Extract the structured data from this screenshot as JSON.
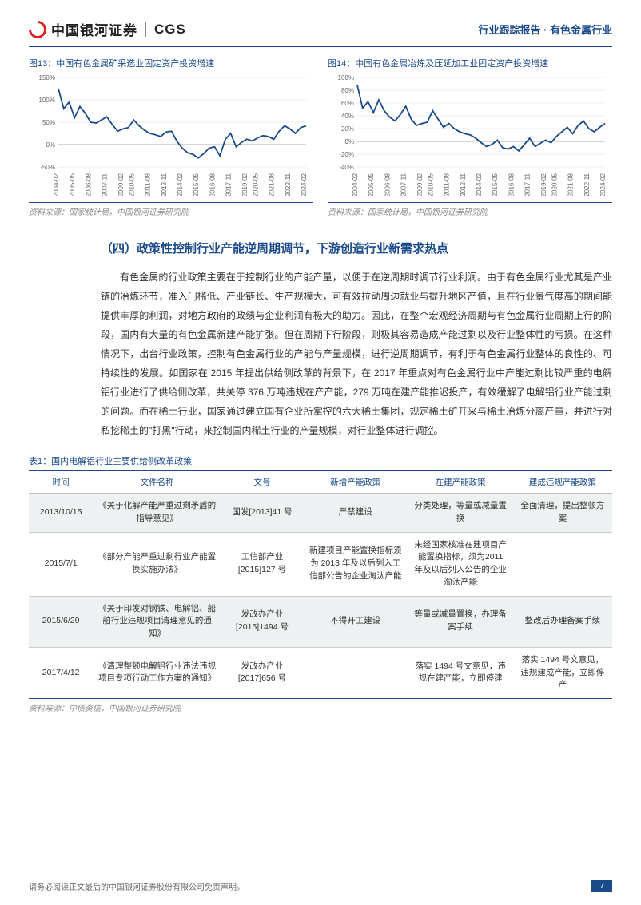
{
  "header": {
    "logo_cn": "中国银河证券",
    "logo_en": "CGS",
    "right_text": "行业跟踪报告 · 有色金属行业"
  },
  "chart_left": {
    "caption": "图13：中国有色金属矿采选业固定资产投资增速",
    "source": "资料来源：国家统计局，中国银河证券研究院",
    "type": "line",
    "ylim": [
      -50,
      150
    ],
    "yticks": [
      -50,
      0,
      50,
      100,
      150
    ],
    "xticks": [
      "2004-02",
      "2005-05",
      "2006-08",
      "2007-11",
      "2009-02",
      "2010-05",
      "2011-08",
      "2012-11",
      "2014-02",
      "2015-05",
      "2016-08",
      "2017-11",
      "2019-02",
      "2020-05",
      "2021-08",
      "2022-11",
      "2024-02"
    ],
    "line_color": "#1a4a8a",
    "grid_color": "#d8d8d8",
    "bg_color": "#ffffff",
    "label_fontsize": 8,
    "series": [
      125,
      80,
      95,
      60,
      85,
      70,
      50,
      48,
      55,
      62,
      45,
      30,
      35,
      38,
      55,
      42,
      32,
      25,
      22,
      18,
      28,
      30,
      8,
      -8,
      -18,
      -22,
      -30,
      -20,
      -8,
      -5,
      -25,
      12,
      25,
      -5,
      5,
      12,
      8,
      15,
      20,
      18,
      12,
      30,
      42,
      35,
      25,
      38,
      42
    ]
  },
  "chart_right": {
    "caption": "图14：中国有色金属冶炼及压延加工业固定资产投资增速",
    "source": "资料来源：国家统计局，中国银河证券研究院",
    "type": "line",
    "ylim": [
      -40,
      100
    ],
    "yticks": [
      -40,
      -20,
      0,
      20,
      40,
      60,
      80,
      100
    ],
    "xticks": [
      "2004-02",
      "2005-05",
      "2006-08",
      "2007-11",
      "2009-02",
      "2010-05",
      "2011-08",
      "2012-11",
      "2014-02",
      "2015-05",
      "2016-08",
      "2017-11",
      "2019-02",
      "2020-05",
      "2021-08",
      "2022-11",
      "2024-02"
    ],
    "line_color": "#1a4a8a",
    "grid_color": "#d8d8d8",
    "bg_color": "#ffffff",
    "label_fontsize": 8,
    "series": [
      88,
      52,
      62,
      45,
      65,
      48,
      38,
      32,
      42,
      55,
      35,
      25,
      28,
      30,
      48,
      35,
      22,
      28,
      20,
      15,
      12,
      10,
      5,
      -2,
      -8,
      -5,
      2,
      -10,
      -12,
      -8,
      -15,
      -5,
      5,
      -8,
      -3,
      2,
      -2,
      8,
      15,
      22,
      12,
      25,
      32,
      20,
      15,
      22,
      28
    ]
  },
  "section": {
    "title": "（四）政策性控制行业产能逆周期调节，下游创造行业新需求热点",
    "body": "有色金属的行业政策主要在于控制行业的产能产量，以便于在逆周期时调节行业利润。由于有色金属行业尤其是产业链的冶炼环节，准入门槛低、产业链长、生产规模大，可有效拉动周边就业与提升地区产值，且在行业景气度高的期间能提供丰厚的利润，对地方政府的政绩与企业利润有极大的助力。因此，在整个宏观经济周期与有色金属行业周期上行的阶段，国内有大量的有色金属新建产能扩张。但在周期下行阶段，则极其容易造成产能过剩以及行业整体性的亏损。在这种情况下，出台行业政策，控制有色金属行业的产能与产量规模，进行逆周期调节，有利于有色金属行业整体的良性的、可持续性的发展。如国家在 2015 年提出供给侧改革的背景下，在 2017 年重点对有色金属行业中产能过剩比较严重的电解铝行业进行了供给侧改革，共关停 376 万吨违规在产产能，279 万吨在建产能推迟投产，有效缓解了电解铝行业产能过剩的问题。而在稀土行业，国家通过建立国有企业所掌控的六大稀土集团，规定稀土矿开采与稀土冶炼分离产量，并进行对私挖稀土的\"打黑\"行动，来控制国内稀土行业的产量规模，对行业整体进行调控。"
  },
  "table": {
    "caption": "表1：国内电解铝行业主要供给侧改革政策",
    "source": "资料来源：中债资信，中国银河证券研究院",
    "headers": [
      "时间",
      "文件名称",
      "文号",
      "新增产能政策",
      "在建产能政策",
      "建成违规产能政策"
    ],
    "col_widths": [
      "11%",
      "22%",
      "14%",
      "18%",
      "18%",
      "17%"
    ],
    "rows": [
      {
        "alt": true,
        "cells": [
          "2013/10/15",
          "《关于化解产能严重过剩矛盾的指导意见》",
          "国发[2013]41 号",
          "严禁建设",
          "分类处理，等量或减量置换",
          "全面清理，提出整顿方案"
        ]
      },
      {
        "alt": false,
        "cells": [
          "2015/7/1",
          "《部分产能严重过剩行业产能置换实施办法》",
          "工信部产业[2015]127 号",
          "新建项目产能置换指标须为 2013 年及以后列入工信部公告的企业淘汰产能",
          "未经国家核准在建项目产能置换指标，须为2011 年及以后列入公告的企业淘汰产能",
          ""
        ]
      },
      {
        "alt": true,
        "cells": [
          "2015/6/29",
          "《关于印发对钢铁、电解铝、船舶行业违规项目清理意见的通知》",
          "发改办产业[2015]1494 号",
          "不得开工建设",
          "等量或减量置换，办理备案手续",
          "整改后办理备案手续"
        ]
      },
      {
        "alt": false,
        "last": true,
        "cells": [
          "2017/4/12",
          "《清理整顿电解铝行业违法违规项目专项行动工作方案的通知》",
          "发改办产业[2017]656 号",
          "",
          "落实 1494 号文意见，违规在建产能，立即停建",
          "落实 1494 号文意见，违规建成产能，立即停产"
        ]
      }
    ]
  },
  "footer": {
    "disclaimer": "请务必阅读正文最后的中国银河证券股份有限公司免责声明。",
    "page_num": "7"
  }
}
